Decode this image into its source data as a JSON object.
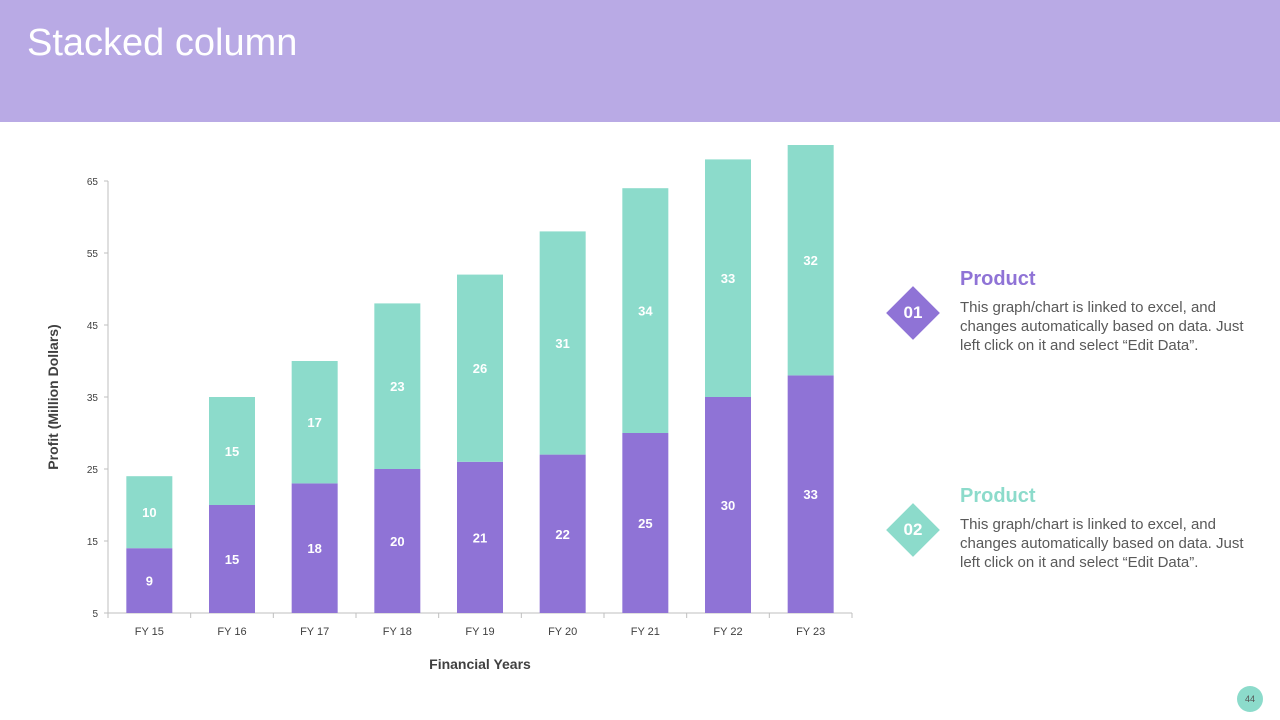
{
  "slide": {
    "title": "Stacked column",
    "page_number": "44"
  },
  "colors": {
    "header": "#b9aae5",
    "series1": "#8f73d6",
    "series2": "#8cdbcb"
  },
  "chart_data": {
    "type": "bar",
    "stacked": true,
    "categories": [
      "FY 15",
      "FY 16",
      "FY 17",
      "FY 18",
      "FY 19",
      "FY 20",
      "FY 21",
      "FY 22",
      "FY 23"
    ],
    "series": [
      {
        "name": "Product 01",
        "values": [
          9,
          15,
          18,
          20,
          21,
          22,
          25,
          30,
          33
        ]
      },
      {
        "name": "Product 02",
        "values": [
          10,
          15,
          17,
          23,
          26,
          31,
          34,
          33,
          32
        ]
      }
    ],
    "xlabel": "Financial  Years",
    "ylabel": "Profit (Million Dollars)",
    "ylim": [
      5,
      65
    ],
    "yticks": [
      5,
      15,
      25,
      35,
      45,
      55,
      65
    ],
    "grid": false,
    "legend": "right"
  },
  "legend": [
    {
      "number": "01",
      "heading": "Product",
      "description": "This graph/chart is linked to excel, and changes automatically based on data. Just left click on it and select “Edit Data”."
    },
    {
      "number": "02",
      "heading": "Product",
      "description": "This graph/chart is linked to excel, and changes automatically based on data. Just left click on it and select “Edit Data”."
    }
  ]
}
